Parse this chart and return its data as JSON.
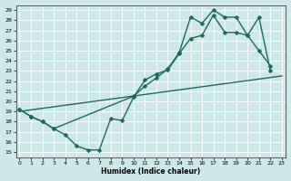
{
  "xlabel": "Humidex (Indice chaleur)",
  "bg_color": "#cce8e8",
  "line_color": "#1a6b5a",
  "grid_color": "#ffffff",
  "xlim": [
    -0.3,
    23.3
  ],
  "ylim": [
    14.5,
    29.5
  ],
  "xticks": [
    0,
    1,
    2,
    3,
    4,
    5,
    6,
    7,
    8,
    9,
    10,
    11,
    12,
    13,
    14,
    15,
    16,
    17,
    18,
    19,
    20,
    21,
    22,
    23
  ],
  "yticks": [
    15,
    16,
    17,
    18,
    19,
    20,
    21,
    22,
    23,
    24,
    25,
    26,
    27,
    28,
    29
  ],
  "line1_x": [
    0,
    1,
    2,
    3,
    4,
    5,
    6,
    7,
    8,
    9,
    10,
    11,
    12,
    13,
    14,
    15,
    16,
    17,
    18,
    19,
    20,
    21,
    22
  ],
  "line1_y": [
    19.2,
    18.5,
    18.0,
    17.3,
    16.7,
    15.6,
    15.2,
    15.2,
    18.3,
    18.1,
    20.4,
    22.1,
    22.7,
    23.1,
    24.7,
    26.2,
    26.5,
    28.5,
    26.8,
    26.8,
    26.5,
    25.0,
    23.5
  ],
  "line2_x": [
    0,
    23
  ],
  "line2_y": [
    19.0,
    22.5
  ],
  "line3_x": [
    0,
    1,
    2,
    3,
    10,
    11,
    12,
    13,
    14,
    15,
    16,
    17,
    18,
    19,
    20,
    21,
    22
  ],
  "line3_y": [
    19.2,
    18.5,
    18.0,
    17.3,
    20.5,
    21.5,
    22.3,
    23.2,
    24.8,
    28.3,
    27.7,
    29.0,
    28.3,
    28.3,
    26.5,
    28.3,
    23.0
  ],
  "markersize": 2.5,
  "linewidth": 1.0
}
